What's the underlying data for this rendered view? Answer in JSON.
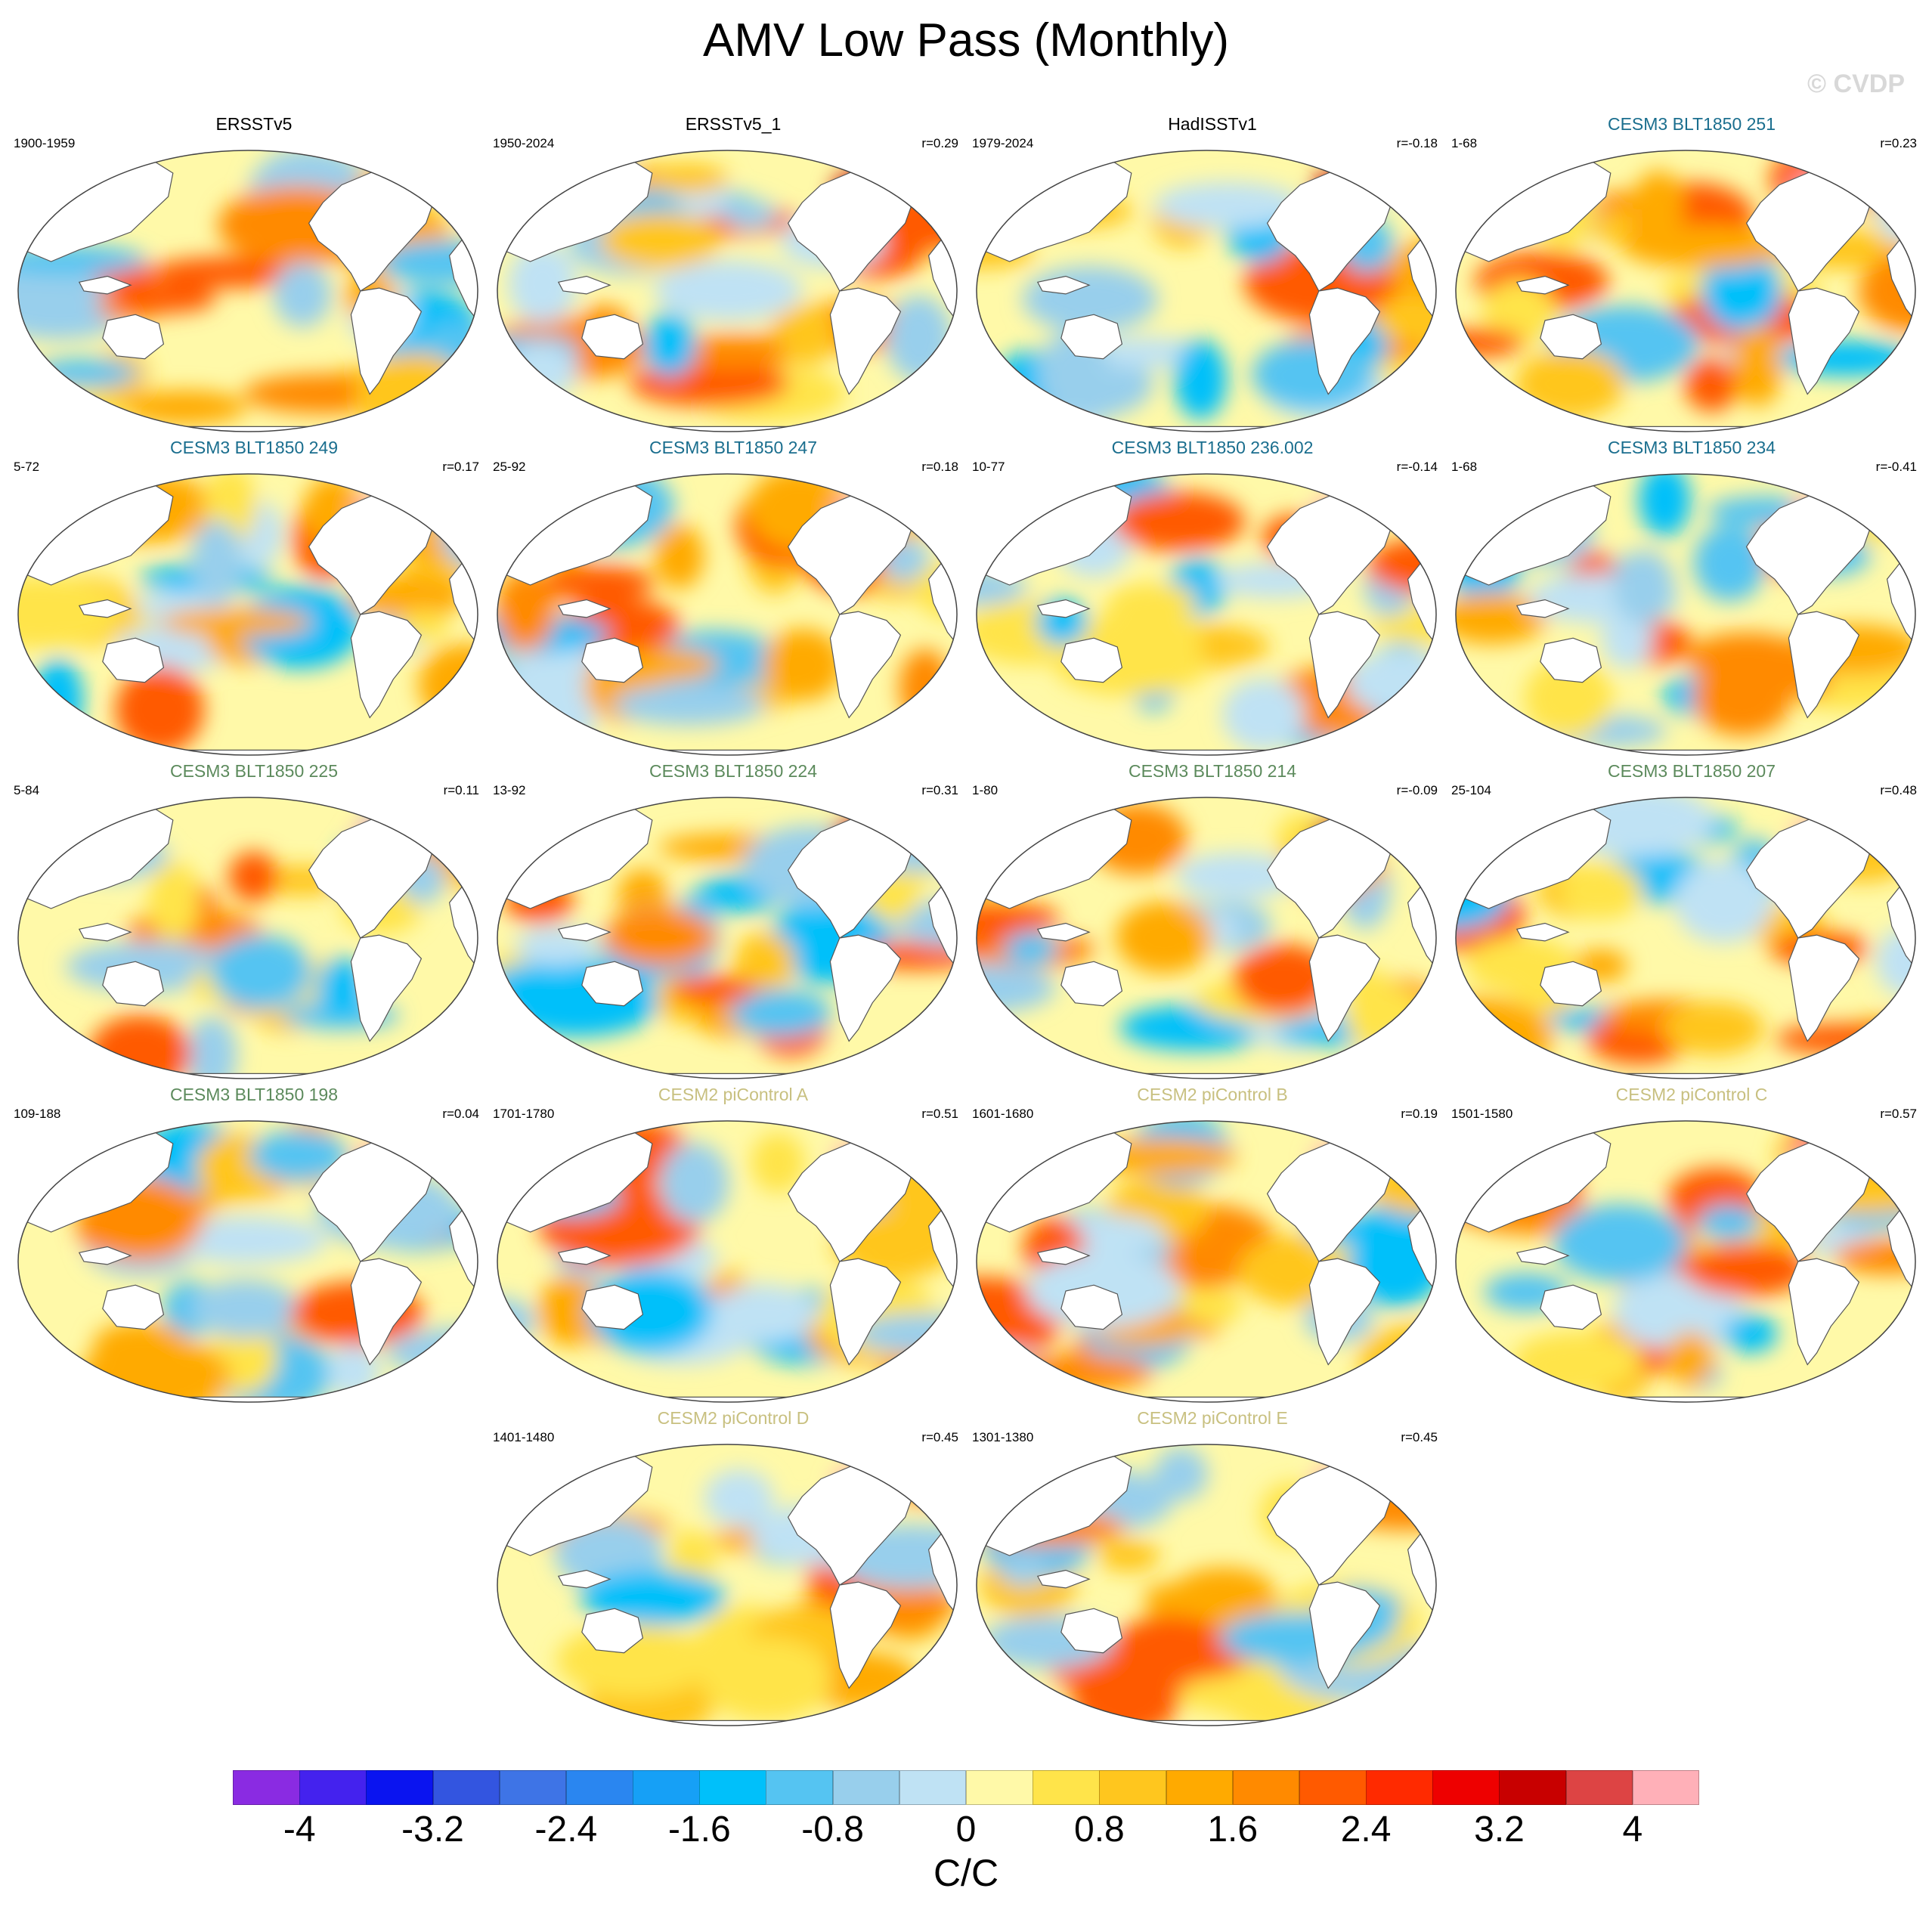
{
  "title": "AMV Low Pass (Monthly)",
  "copyright": "© CVDP",
  "units": "C/C",
  "colorbar": {
    "colors": [
      "#8a2be2",
      "#4422ee",
      "#0a14f0",
      "#3355e0",
      "#3e74e6",
      "#2a86f0",
      "#16a0f6",
      "#00c0fa",
      "#55c4f2",
      "#98cfec",
      "#bfe2f4",
      "#fff9a8",
      "#ffe44a",
      "#ffc61e",
      "#ffaa00",
      "#ff8a00",
      "#ff5a00",
      "#ff2a00",
      "#ee0000",
      "#c80000",
      "#dd4444",
      "#ffb0b8"
    ],
    "tick_labels": [
      "-4",
      "-3.2",
      "-2.4",
      "-1.6",
      "-0.8",
      "0",
      "0.8",
      "1.6",
      "2.4",
      "3.2",
      "4"
    ],
    "tick_values": [
      -4,
      -3.2,
      -2.4,
      -1.6,
      -0.8,
      0,
      0.8,
      1.6,
      2.4,
      3.2,
      4
    ],
    "range": [
      -4.4,
      4.4
    ]
  },
  "title_colors": {
    "black": "#000000",
    "cesm3_blue": "#1a6e8e",
    "cesm3_green": "#5c8a5c",
    "cesm2_yellow": "#c8c080"
  },
  "panels": [
    {
      "title": "ERSSTv5",
      "title_color": "black",
      "years": "1900-1959",
      "corr": "",
      "pattern": 0
    },
    {
      "title": "ERSSTv5_1",
      "title_color": "black",
      "years": "1950-2024",
      "corr": "r=0.29",
      "pattern": 1
    },
    {
      "title": "HadISSTv1",
      "title_color": "black",
      "years": "1979-2024",
      "corr": "r=-0.18",
      "pattern": 2
    },
    {
      "title": "CESM3 BLT1850 251",
      "title_color": "cesm3_blue",
      "years": "1-68",
      "corr": "r=0.23",
      "pattern": 3
    },
    {
      "title": "CESM3 BLT1850 249",
      "title_color": "cesm3_blue",
      "years": "5-72",
      "corr": "r=0.17",
      "pattern": 4
    },
    {
      "title": "CESM3 BLT1850 247",
      "title_color": "cesm3_blue",
      "years": "25-92",
      "corr": "r=0.18",
      "pattern": 5
    },
    {
      "title": "CESM3 BLT1850 236.002",
      "title_color": "cesm3_blue",
      "years": "10-77",
      "corr": "r=-0.14",
      "pattern": 6
    },
    {
      "title": "CESM3 BLT1850 234",
      "title_color": "cesm3_blue",
      "years": "1-68",
      "corr": "r=-0.41",
      "pattern": 7
    },
    {
      "title": "CESM3 BLT1850 225",
      "title_color": "cesm3_green",
      "years": "5-84",
      "corr": "r=0.11",
      "pattern": 8
    },
    {
      "title": "CESM3 BLT1850 224",
      "title_color": "cesm3_green",
      "years": "13-92",
      "corr": "r=0.31",
      "pattern": 9
    },
    {
      "title": "CESM3 BLT1850 214",
      "title_color": "cesm3_green",
      "years": "1-80",
      "corr": "r=-0.09",
      "pattern": 10
    },
    {
      "title": "CESM3 BLT1850 207",
      "title_color": "cesm3_green",
      "years": "25-104",
      "corr": "r=0.48",
      "pattern": 11
    },
    {
      "title": "CESM3 BLT1850 198",
      "title_color": "cesm3_green",
      "years": "109-188",
      "corr": "r=0.04",
      "pattern": 12
    },
    {
      "title": "CESM2 piControl A",
      "title_color": "cesm2_yellow",
      "years": "1701-1780",
      "corr": "r=0.51",
      "pattern": 13
    },
    {
      "title": "CESM2 piControl B",
      "title_color": "cesm2_yellow",
      "years": "1601-1680",
      "corr": "r=0.19",
      "pattern": 14
    },
    {
      "title": "CESM2 piControl C",
      "title_color": "cesm2_yellow",
      "years": "1501-1580",
      "corr": "r=0.57",
      "pattern": 15
    },
    {
      "title": "CESM2 piControl D",
      "title_color": "cesm2_yellow",
      "years": "1401-1480",
      "corr": "r=0.45",
      "pattern": 16
    },
    {
      "title": "CESM2 piControl E",
      "title_color": "cesm2_yellow",
      "years": "1301-1380",
      "corr": "r=0.45",
      "pattern": 17
    }
  ]
}
